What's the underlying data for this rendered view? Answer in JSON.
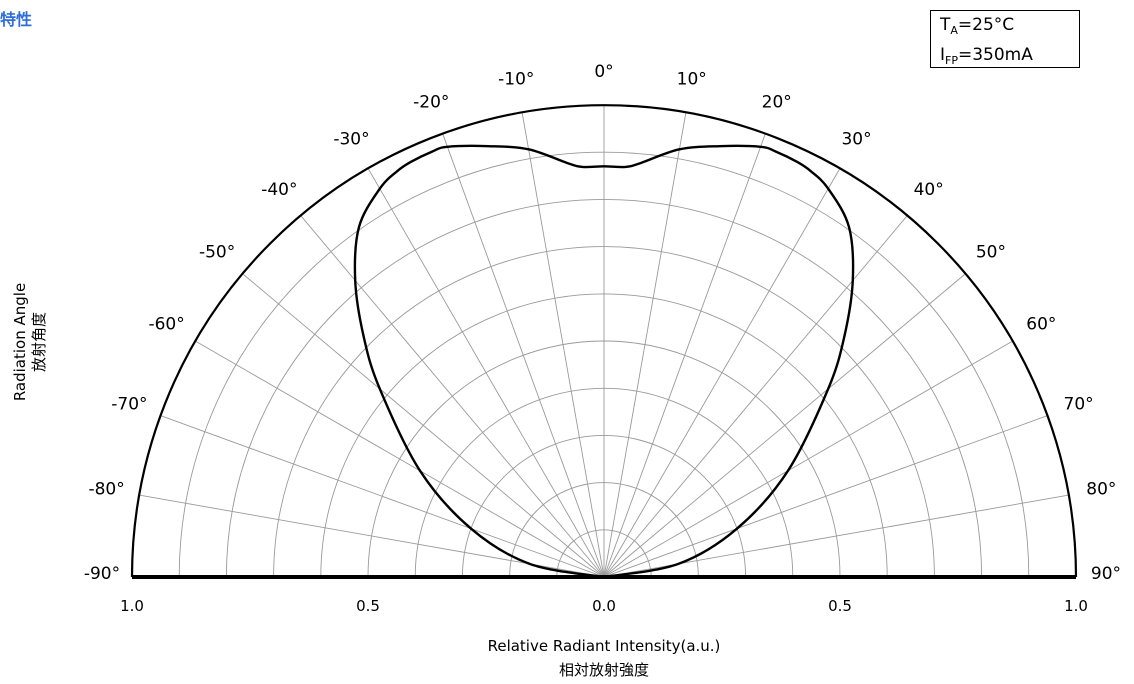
{
  "header": {
    "title": "特性"
  },
  "conditions": {
    "line1": {
      "main": "T",
      "sub": "A",
      "rest": "=25°C"
    },
    "line2": {
      "main": "I",
      "sub": "FP",
      "rest": "=350mA"
    }
  },
  "chart_data": {
    "type": "polar",
    "title": "",
    "ylabel": {
      "en": "Radiation Angle",
      "ja": "放射角度"
    },
    "xlabel": {
      "en": "Relative Radiant Intensity(a.u.)",
      "ja": "相対放射強度"
    },
    "angle_range": [
      -90,
      90
    ],
    "angle_step": 10,
    "angle_tick_labels": [
      "-90°",
      "-80°",
      "-70°",
      "-60°",
      "-50°",
      "-40°",
      "-30°",
      "-20°",
      "-10°",
      "0°",
      "10°",
      "20°",
      "30°",
      "40°",
      "50°",
      "60°",
      "70°",
      "80°",
      "90°"
    ],
    "radial_range": [
      0,
      1.0
    ],
    "radial_step": 0.1,
    "radial_tick_labels": [
      {
        "r": 1.0,
        "side": "left",
        "label": "1.0"
      },
      {
        "r": 0.5,
        "side": "left",
        "label": "0.5"
      },
      {
        "r": 0.0,
        "side": "center",
        "label": "0.0"
      },
      {
        "r": 0.5,
        "side": "right",
        "label": "0.5"
      },
      {
        "r": 1.0,
        "side": "right",
        "label": "1.0"
      }
    ],
    "grid": true,
    "series": [
      {
        "angles": [
          -90,
          -80,
          -70,
          -60,
          -50,
          -45,
          -40,
          -35,
          -30,
          -27,
          -25,
          -22,
          -20,
          -15,
          -10,
          -5,
          -3,
          0,
          3,
          5,
          10,
          15,
          20,
          22,
          25,
          27,
          30,
          35,
          40,
          45,
          50,
          60,
          70,
          80,
          90
        ],
        "values": [
          0,
          0.16,
          0.3,
          0.45,
          0.62,
          0.72,
          0.82,
          0.905,
          0.95,
          0.965,
          0.97,
          0.972,
          0.97,
          0.945,
          0.92,
          0.88,
          0.87,
          0.87,
          0.87,
          0.88,
          0.92,
          0.945,
          0.97,
          0.972,
          0.97,
          0.965,
          0.95,
          0.905,
          0.82,
          0.72,
          0.62,
          0.45,
          0.3,
          0.16,
          0
        ]
      }
    ]
  }
}
